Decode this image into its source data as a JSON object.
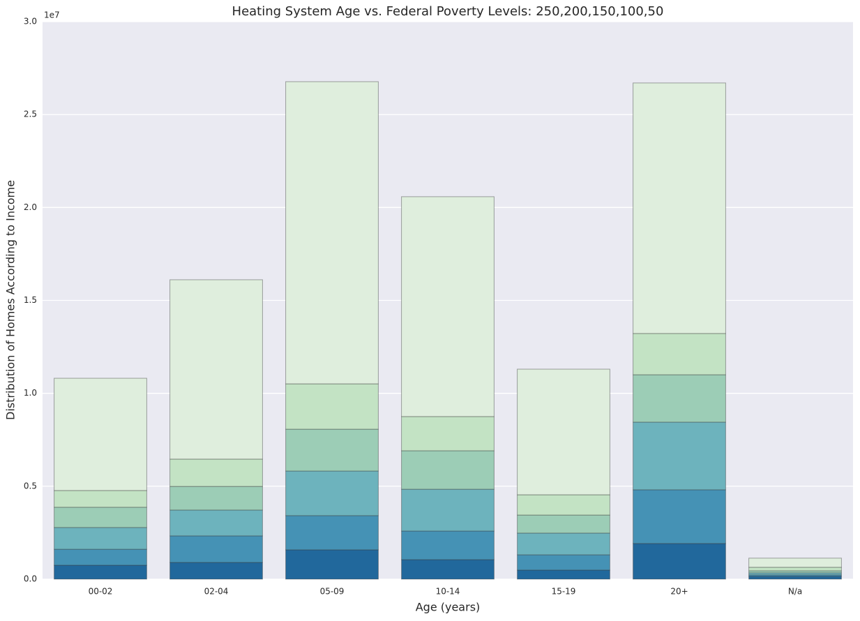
{
  "chart_data": {
    "type": "stacked_bar",
    "title": "Heating System Age vs. Federal Poverty Levels: 250,200,150,100,50",
    "x_label": "Age (years)",
    "y_label": "Distribution of Homes According to Income",
    "y_offset_label": "1e7",
    "categories": [
      "00-02",
      "02-04",
      "05-09",
      "10-14",
      "15-19",
      "20+",
      "N/a"
    ],
    "series": [
      {
        "color": "#21689c",
        "values": [
          750000,
          900000,
          1580000,
          1050000,
          490000,
          1920000,
          150000
        ]
      },
      {
        "color": "#4592b5",
        "values": [
          860000,
          1430000,
          1840000,
          1540000,
          820000,
          2890000,
          80000
        ]
      },
      {
        "color": "#6db3bd",
        "values": [
          1170000,
          1390000,
          2400000,
          2250000,
          1170000,
          3640000,
          110000
        ]
      },
      {
        "color": "#9ccdb6",
        "values": [
          1090000,
          1270000,
          2250000,
          2070000,
          970000,
          2550000,
          110000
        ]
      },
      {
        "color": "#c3e3c4",
        "values": [
          900000,
          1470000,
          2440000,
          1840000,
          1090000,
          2220000,
          190000
        ]
      },
      {
        "color": "#dfeedd",
        "values": [
          6040000,
          9650000,
          16260000,
          11830000,
          6760000,
          13480000,
          490000
        ]
      }
    ],
    "ylim": [
      0,
      30000000
    ],
    "yticks": [
      {
        "value": 0,
        "label": "0.0"
      },
      {
        "value": 5000000,
        "label": "0.5"
      },
      {
        "value": 10000000,
        "label": "1.0"
      },
      {
        "value": 15000000,
        "label": "1.5"
      },
      {
        "value": 20000000,
        "label": "2.0"
      },
      {
        "value": 25000000,
        "label": "2.5"
      },
      {
        "value": 30000000,
        "label": "3.0"
      }
    ],
    "grid": true
  }
}
